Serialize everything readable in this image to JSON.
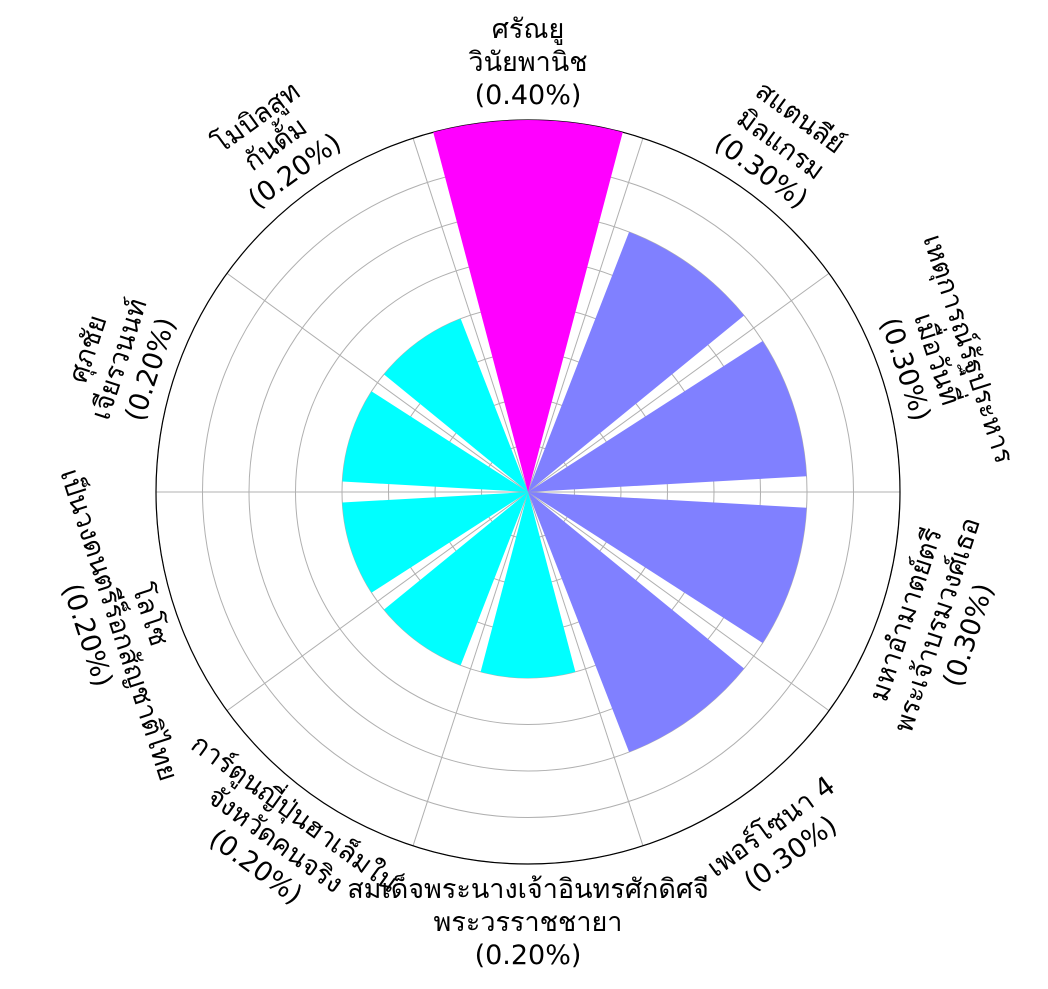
{
  "chart_data": {
    "type": "polar-bar",
    "title": "",
    "grid": true,
    "rlim": [
      0,
      0.4
    ],
    "categories": [
      [
        "ศรัณยู",
        "วินัยพานิช"
      ],
      [
        "สแตนลีย์",
        "มิลแกรม"
      ],
      [
        "เหตุการณ์รัฐประหาร",
        "เมื่อวันที่"
      ],
      [
        "มหาอำมาตย์ตรี",
        "พระเจ้าบรมวงศ์เธอ"
      ],
      [
        "เพอร์โซนา 4"
      ],
      [
        "สมเด็จพระนางเจ้าอินทรศักดิศจี",
        "พระวรราชชายา"
      ],
      [
        "การ์ตูนญี่ปุ่นฮาเล็มใน",
        "จังหวัดคนจริง"
      ],
      [
        "โลโซ",
        "เป็นวงดนตรีร็อกสัญชาติไทย"
      ],
      [
        "ศุภชัย",
        "เจียรวนนท์"
      ],
      [
        "โมบิลสูท",
        "กันดั้ม"
      ]
    ],
    "value_labels": [
      "(0.40%)",
      "(0.30%)",
      "(0.30%)",
      "(0.30%)",
      "(0.30%)",
      "(0.20%)",
      "(0.20%)",
      "(0.20%)",
      "(0.20%)",
      "(0.20%)"
    ],
    "values": [
      0.4,
      0.3,
      0.3,
      0.3,
      0.3,
      0.2,
      0.2,
      0.2,
      0.2,
      0.2
    ],
    "colors": [
      "#ff00ff",
      "#8080ff",
      "#8080ff",
      "#8080ff",
      "#8080ff",
      "#00ffff",
      "#00ffff",
      "#00ffff",
      "#00ffff",
      "#00ffff"
    ]
  }
}
